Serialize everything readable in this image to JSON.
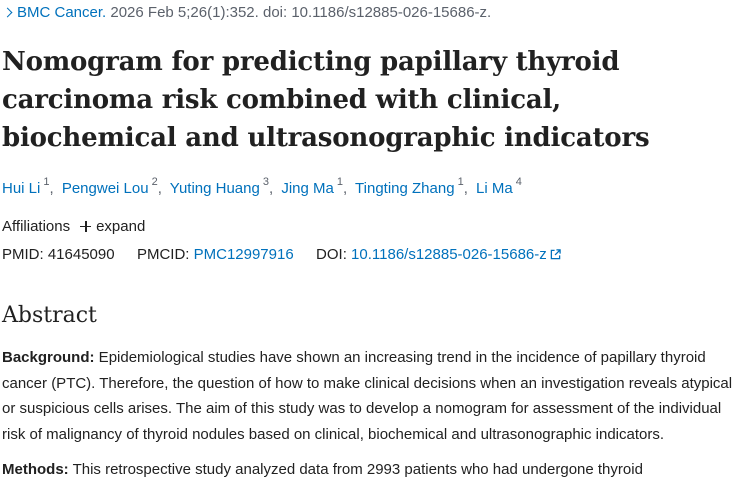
{
  "citation": {
    "journal_link": "BMC Cancer.",
    "details": "2026 Feb 5;26(1):352. doi: 10.1186/s12885-026-15686-z."
  },
  "article": {
    "title": "Nomogram for predicting papillary thyroid carcinoma risk combined with clinical, biochemical and ultrasonographic indicators",
    "authors": [
      {
        "name": "Hui Li",
        "aff": "1"
      },
      {
        "name": "Pengwei Lou",
        "aff": "2"
      },
      {
        "name": "Yuting Huang",
        "aff": "3"
      },
      {
        "name": "Jing Ma",
        "aff": "1"
      },
      {
        "name": "Tingting Zhang",
        "aff": "1"
      },
      {
        "name": "Li Ma",
        "aff": "4"
      }
    ],
    "affiliations_label": "Affiliations",
    "expand_label": "expand",
    "pmid_label": "PMID:",
    "pmid_value": "41645090",
    "pmcid_label": "PMCID:",
    "pmcid_value": "PMC12997916",
    "doi_label": "DOI:",
    "doi_value": "10.1186/s12885-026-15686-z"
  },
  "abstract": {
    "heading": "Abstract",
    "background_label": "Background:",
    "background_text": " Epidemiological studies have shown an increasing trend in the incidence of papillary thyroid cancer (PTC). Therefore, the question of how to make clinical decisions when an investigation reveals atypical or suspicious cells arises. The aim of this study was to develop a nomogram for assessment of the individual risk of malignancy of thyroid nodules based on clinical, biochemical and ultrasonographic indicators.",
    "methods_label": "Methods:",
    "methods_text": " This retrospective study analyzed data from 2993 patients who had undergone thyroid"
  }
}
